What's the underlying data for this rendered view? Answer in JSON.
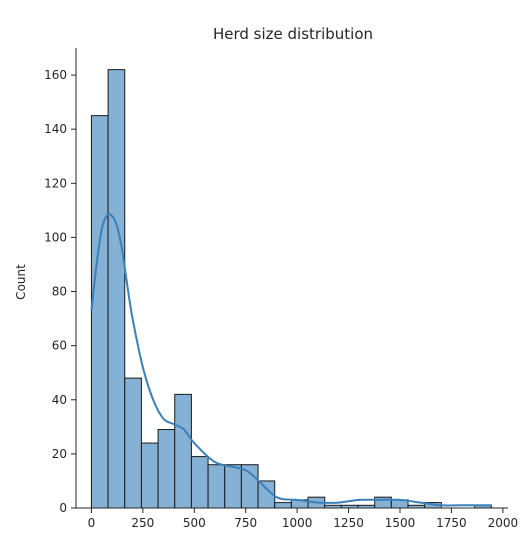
{
  "chart_data": {
    "type": "bar",
    "title": "Herd size distribution",
    "xlabel": "",
    "ylabel": "Count",
    "xlim": [
      -75,
      2025
    ],
    "ylim": [
      0,
      170
    ],
    "x_ticks": [
      0,
      250,
      500,
      750,
      1000,
      1250,
      1500,
      1750,
      2000
    ],
    "y_ticks": [
      0,
      20,
      40,
      60,
      80,
      100,
      120,
      140,
      160
    ],
    "bin_edges": [
      0,
      81,
      162,
      243,
      324,
      405,
      486,
      567,
      648,
      729,
      810,
      891,
      972,
      1053,
      1134,
      1215,
      1296,
      1377,
      1458,
      1539,
      1620,
      1701,
      1782,
      1863,
      1944
    ],
    "counts": [
      145,
      162,
      48,
      24,
      29,
      42,
      19,
      16,
      16,
      16,
      10,
      2,
      3,
      4,
      1,
      1,
      1,
      4,
      3,
      1,
      2,
      0,
      0,
      1
    ],
    "kde": {
      "x": [
        0,
        25,
        50,
        75,
        100,
        125,
        150,
        175,
        200,
        250,
        300,
        350,
        400,
        450,
        500,
        600,
        700,
        750,
        800,
        900,
        1000,
        1100,
        1200,
        1300,
        1400,
        1500,
        1600,
        1700,
        1800,
        1900,
        1944
      ],
      "y": [
        73,
        90,
        103,
        108,
        108,
        104,
        95,
        82,
        70,
        52,
        40,
        33,
        31,
        29,
        24,
        17,
        15,
        14,
        11,
        4,
        3,
        2,
        2,
        3,
        3,
        3,
        2,
        1,
        1,
        1,
        1
      ]
    },
    "grid": false,
    "legend": "none",
    "colors": {
      "bar_fill": "#85b1d5",
      "bar_edge": "#1a1a1a",
      "kde_line": "#3b80b9",
      "axis": "#262626"
    }
  }
}
